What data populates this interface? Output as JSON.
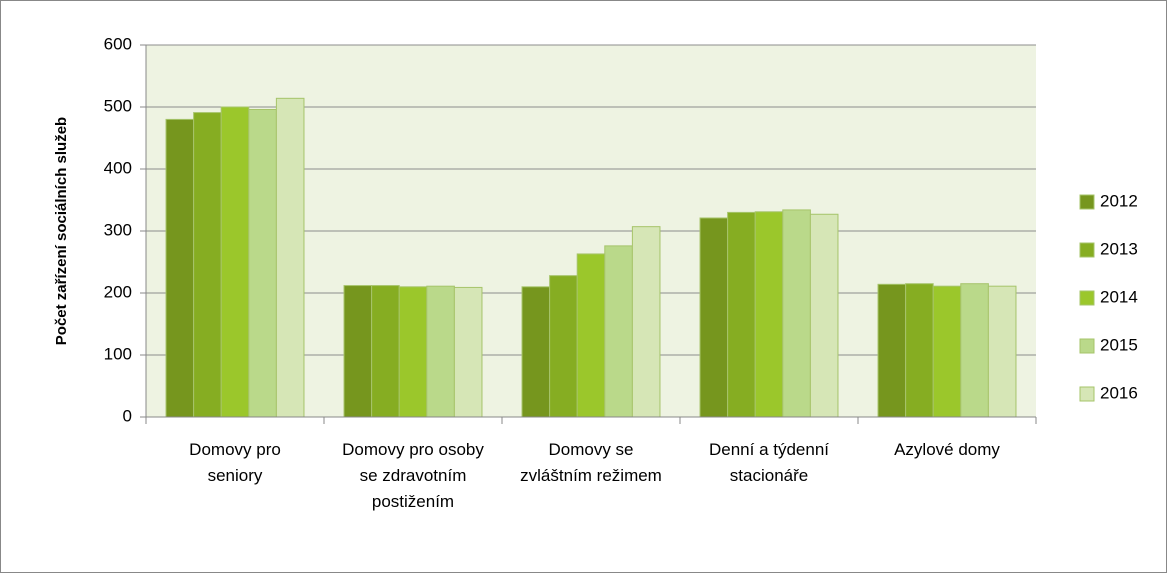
{
  "chart_data": {
    "type": "bar",
    "y_label": "Počet zařízení sociálních služeb",
    "categories": [
      "Domovy pro seniory",
      "Domovy pro osoby se zdravotním postižením",
      "Domovy se zvláštním režimem",
      "Denní a týdenní stacionáře",
      "Azylové domy"
    ],
    "series": [
      {
        "name": "2012",
        "color": "#76961e",
        "values": [
          480,
          212,
          210,
          321,
          214
        ]
      },
      {
        "name": "2013",
        "color": "#86ad22",
        "values": [
          491,
          212,
          228,
          330,
          215
        ]
      },
      {
        "name": "2014",
        "color": "#9bc72b",
        "values": [
          500,
          210,
          263,
          331,
          211
        ]
      },
      {
        "name": "2015",
        "color": "#bad98a",
        "values": [
          496,
          211,
          276,
          334,
          215
        ]
      },
      {
        "name": "2016",
        "color": "#d6e6b6",
        "values": [
          514,
          209,
          307,
          327,
          211
        ]
      }
    ],
    "ylim": [
      0,
      600
    ],
    "yticks": [
      0,
      100,
      200,
      300,
      400,
      500,
      600
    ],
    "grid": true,
    "legend": "right"
  }
}
